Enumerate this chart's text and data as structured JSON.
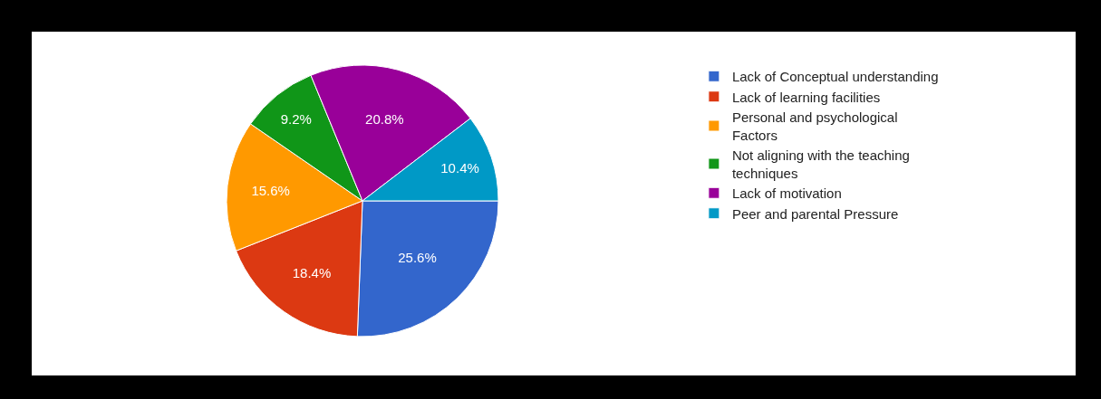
{
  "chart_data": {
    "type": "pie",
    "categories": [
      "Lack of Conceptual understanding",
      "Lack of learning facilities",
      "Personal and psychological Factors",
      "Not aligning with the teaching techniques",
      "Lack of motivation",
      "Peer and parental Pressure"
    ],
    "values": [
      25.6,
      18.4,
      15.6,
      9.2,
      20.8,
      10.4
    ],
    "value_labels": [
      "25.6%",
      "18.4%",
      "15.6%",
      "9.2%",
      "20.8%",
      "10.4%"
    ],
    "colors": [
      "#3366cc",
      "#dc3912",
      "#ff9900",
      "#109618",
      "#990099",
      "#0099c6"
    ],
    "legend": "right"
  }
}
